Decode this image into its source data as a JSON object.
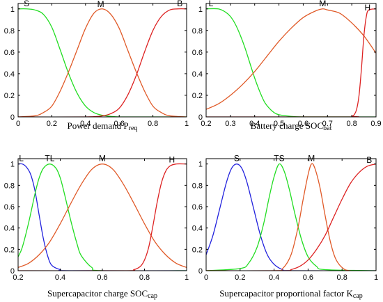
{
  "chart_data": [
    {
      "type": "line",
      "xlabel": "Power demand",
      "xlabel_symbol": "P",
      "xlabel_sub": "req",
      "xlim": [
        0,
        1
      ],
      "ylim": [
        0,
        1.05
      ],
      "xticks": [
        0,
        0.2,
        0.4,
        0.6,
        0.8,
        1
      ],
      "xtick_labels": [
        "0",
        "0.2",
        "0.4",
        "0.6",
        "0.8",
        "1"
      ],
      "yticks": [
        0,
        0.2,
        0.4,
        0.6,
        0.8,
        1
      ],
      "ytick_labels": [
        "0",
        "0.2",
        "0.4",
        "0.6",
        "0.8",
        "1"
      ],
      "series": [
        {
          "name": "S",
          "color": "#22dd22",
          "label_x": 0.05,
          "x": [
            0,
            0.05,
            0.1,
            0.15,
            0.2,
            0.25,
            0.3,
            0.35,
            0.4,
            0.45,
            0.5,
            0.55,
            0.6,
            0.7,
            0.8,
            0.9,
            1
          ],
          "y": [
            1,
            1,
            0.99,
            0.95,
            0.83,
            0.62,
            0.4,
            0.22,
            0.1,
            0.04,
            0.015,
            0.005,
            0,
            0,
            0,
            0,
            0
          ]
        },
        {
          "name": "M",
          "color": "#e05a28",
          "label_x": 0.49,
          "x": [
            0,
            0.1,
            0.15,
            0.2,
            0.25,
            0.3,
            0.35,
            0.4,
            0.45,
            0.5,
            0.55,
            0.6,
            0.65,
            0.7,
            0.75,
            0.8,
            0.85,
            0.9,
            1
          ],
          "y": [
            0,
            0.01,
            0.04,
            0.1,
            0.24,
            0.42,
            0.62,
            0.82,
            0.96,
            1,
            0.95,
            0.82,
            0.62,
            0.42,
            0.24,
            0.1,
            0.04,
            0.01,
            0
          ]
        },
        {
          "name": "B",
          "color": "#dd2222",
          "label_x": 0.96,
          "x": [
            0,
            0.4,
            0.5,
            0.55,
            0.6,
            0.65,
            0.7,
            0.75,
            0.8,
            0.85,
            0.9,
            0.95,
            1
          ],
          "y": [
            0,
            0,
            0.01,
            0.03,
            0.08,
            0.2,
            0.38,
            0.6,
            0.8,
            0.93,
            0.99,
            1,
            1
          ]
        }
      ]
    },
    {
      "type": "line",
      "xlabel": "Battery charge",
      "xlabel_symbol": "SOC",
      "xlabel_sub": "bat",
      "xlim": [
        0.2,
        0.9
      ],
      "ylim": [
        0,
        1.05
      ],
      "xticks": [
        0.2,
        0.3,
        0.4,
        0.5,
        0.6,
        0.7,
        0.8,
        0.9
      ],
      "xtick_labels": [
        "0.2",
        "0.3",
        "0.4",
        "0.5",
        "0.6",
        "0.7",
        "0.8",
        "0.9"
      ],
      "yticks": [
        0,
        0.2,
        0.4,
        0.6,
        0.8,
        1
      ],
      "ytick_labels": [
        "0",
        "0.2",
        "0.4",
        "0.6",
        "0.8",
        "1"
      ],
      "series": [
        {
          "name": "L",
          "color": "#22dd22",
          "label_x": 0.22,
          "x": [
            0.2,
            0.25,
            0.28,
            0.3,
            0.32,
            0.34,
            0.36,
            0.38,
            0.4,
            0.42,
            0.44,
            0.46,
            0.48,
            0.5,
            0.55,
            0.6,
            0.7,
            0.9
          ],
          "y": [
            1,
            1,
            0.97,
            0.93,
            0.86,
            0.76,
            0.64,
            0.5,
            0.36,
            0.24,
            0.14,
            0.08,
            0.04,
            0.02,
            0.005,
            0,
            0,
            0
          ]
        },
        {
          "name": "M",
          "color": "#e05a28",
          "label_x": 0.68,
          "x": [
            0.2,
            0.25,
            0.3,
            0.35,
            0.4,
            0.45,
            0.5,
            0.55,
            0.6,
            0.65,
            0.68,
            0.7,
            0.75,
            0.8,
            0.85,
            0.9
          ],
          "y": [
            0.07,
            0.12,
            0.2,
            0.3,
            0.42,
            0.56,
            0.7,
            0.82,
            0.92,
            0.98,
            1,
            0.99,
            0.96,
            0.87,
            0.75,
            0.59
          ]
        },
        {
          "name": "H",
          "color": "#dd2222",
          "label_x": 0.865,
          "x": [
            0.2,
            0.78,
            0.8,
            0.81,
            0.82,
            0.83,
            0.84,
            0.85,
            0.86,
            0.87,
            0.9
          ],
          "y": [
            0,
            0,
            0.005,
            0.02,
            0.07,
            0.2,
            0.45,
            0.75,
            0.93,
            0.99,
            1
          ]
        }
      ]
    },
    {
      "type": "line",
      "xlabel": "Supercapacitor charge",
      "xlabel_symbol": "SOC",
      "xlabel_sub": "cap",
      "xlim": [
        0.2,
        1
      ],
      "ylim": [
        0,
        1.05
      ],
      "xticks": [
        0.2,
        0.4,
        0.6,
        0.8,
        1
      ],
      "xtick_labels": [
        "0.2",
        "0.4",
        "0.6",
        "0.8",
        "1"
      ],
      "yticks": [
        0,
        0.2,
        0.4,
        0.6,
        0.8,
        1
      ],
      "ytick_labels": [
        "0",
        "0.2",
        "0.4",
        "0.6",
        "0.8",
        "1"
      ],
      "series": [
        {
          "name": "L",
          "color": "#2222dd",
          "label_x": 0.215,
          "x": [
            0.2,
            0.22,
            0.24,
            0.26,
            0.28,
            0.3,
            0.32,
            0.34,
            0.36,
            0.4,
            0.45,
            1
          ],
          "y": [
            1,
            1,
            0.97,
            0.9,
            0.75,
            0.52,
            0.3,
            0.14,
            0.05,
            0.01,
            0,
            0
          ]
        },
        {
          "name": "TL",
          "color": "#22dd22",
          "label_x": 0.35,
          "x": [
            0.2,
            0.22,
            0.25,
            0.28,
            0.3,
            0.32,
            0.35,
            0.38,
            0.4,
            0.42,
            0.45,
            0.48,
            0.5,
            0.55,
            0.6,
            1
          ],
          "y": [
            0.13,
            0.22,
            0.45,
            0.72,
            0.87,
            0.96,
            1,
            0.96,
            0.87,
            0.72,
            0.47,
            0.25,
            0.14,
            0.03,
            0,
            0
          ]
        },
        {
          "name": "M",
          "color": "#e05a28",
          "label_x": 0.6,
          "x": [
            0.2,
            0.25,
            0.3,
            0.35,
            0.4,
            0.45,
            0.5,
            0.55,
            0.6,
            0.65,
            0.7,
            0.75,
            0.8,
            0.85,
            0.9,
            0.95,
            1
          ],
          "y": [
            0.03,
            0.07,
            0.15,
            0.27,
            0.44,
            0.63,
            0.81,
            0.95,
            1,
            0.95,
            0.81,
            0.63,
            0.44,
            0.27,
            0.15,
            0.07,
            0.03
          ]
        },
        {
          "name": "H",
          "color": "#dd2222",
          "label_x": 0.93,
          "x": [
            0.2,
            0.7,
            0.75,
            0.78,
            0.8,
            0.82,
            0.84,
            0.86,
            0.88,
            0.9,
            0.92,
            0.95,
            1
          ],
          "y": [
            0,
            0,
            0.01,
            0.04,
            0.1,
            0.22,
            0.42,
            0.64,
            0.82,
            0.93,
            0.98,
            1,
            1
          ]
        }
      ]
    },
    {
      "type": "line",
      "xlabel": "Supercapacitor proportional factor",
      "xlabel_symbol": "K",
      "xlabel_sub": "cap",
      "xlim": [
        0,
        1
      ],
      "ylim": [
        0,
        1.05
      ],
      "xticks": [
        0,
        0.2,
        0.4,
        0.6,
        0.8,
        1
      ],
      "xtick_labels": [
        "0",
        "0.2",
        "0.4",
        "0.6",
        "0.8",
        "1"
      ],
      "yticks": [
        0,
        0.2,
        0.4,
        0.6,
        0.8,
        1
      ],
      "ytick_labels": [
        "0",
        "0.2",
        "0.4",
        "0.6",
        "0.8",
        "1"
      ],
      "series": [
        {
          "name": "S",
          "color": "#2222dd",
          "label_x": 0.18,
          "x": [
            0,
            0.04,
            0.08,
            0.12,
            0.15,
            0.18,
            0.21,
            0.24,
            0.28,
            0.32,
            0.36,
            0.4,
            0.45,
            0.5,
            1
          ],
          "y": [
            0.15,
            0.33,
            0.58,
            0.83,
            0.96,
            1,
            0.96,
            0.83,
            0.58,
            0.33,
            0.15,
            0.06,
            0.01,
            0,
            0
          ]
        },
        {
          "name": "TS",
          "color": "#22dd22",
          "label_x": 0.43,
          "x": [
            0,
            0.2,
            0.25,
            0.3,
            0.34,
            0.37,
            0.4,
            0.43,
            0.46,
            0.49,
            0.52,
            0.56,
            0.6,
            0.65,
            0.7,
            1
          ],
          "y": [
            0,
            0.02,
            0.07,
            0.22,
            0.45,
            0.68,
            0.88,
            1,
            0.93,
            0.76,
            0.55,
            0.3,
            0.13,
            0.04,
            0.01,
            0
          ]
        },
        {
          "name": "M",
          "color": "#e05a28",
          "label_x": 0.62,
          "x": [
            0,
            0.4,
            0.45,
            0.5,
            0.54,
            0.57,
            0.6,
            0.62,
            0.64,
            0.67,
            0.7,
            0.73,
            0.76,
            0.8,
            0.85,
            1
          ],
          "y": [
            0,
            0,
            0.02,
            0.15,
            0.4,
            0.66,
            0.9,
            1,
            0.96,
            0.78,
            0.52,
            0.28,
            0.12,
            0.03,
            0,
            0
          ]
        },
        {
          "name": "B",
          "color": "#dd2222",
          "label_x": 0.96,
          "x": [
            0,
            0.45,
            0.5,
            0.55,
            0.6,
            0.65,
            0.7,
            0.75,
            0.8,
            0.85,
            0.9,
            0.95,
            1
          ],
          "y": [
            0,
            0,
            0.01,
            0.04,
            0.1,
            0.2,
            0.33,
            0.5,
            0.67,
            0.82,
            0.92,
            0.98,
            1
          ]
        }
      ]
    }
  ]
}
